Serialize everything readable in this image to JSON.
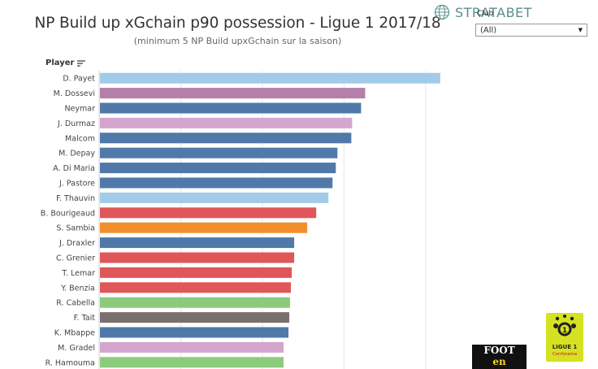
{
  "header": {
    "title": "NP Build up xGchain p90 possession - Ligue 1 2017/18",
    "subtitle": "(minimum 5 NP Build upxGchain sur la saison)"
  },
  "brand": {
    "name": "STRATABET"
  },
  "filter": {
    "label": "Club",
    "value": "(All)"
  },
  "table_header": {
    "player": "Player"
  },
  "sponsors": {
    "foot_line1": "FOOT",
    "foot_line2": "en",
    "ligue_line1": "LIGUE 1",
    "ligue_line2": "Conforama"
  },
  "colors": {
    "light_blue": "#a2cbea",
    "purple": "#b57fab",
    "blue": "#5079aa",
    "pink": "#d4a6cd",
    "red": "#e05759",
    "orange": "#f28e2b",
    "green": "#8ccb7c",
    "grey": "#79706e",
    "grid": "#e6e6e6"
  },
  "chart_data": {
    "type": "bar",
    "orientation": "horizontal",
    "categories": [
      "D. Payet",
      "M. Dossevi",
      "Neymar",
      "J. Durmaz",
      "Malcom",
      "M. Depay",
      "A. Di Maria",
      "J. Pastore",
      "F. Thauvin",
      "B. Bourigeaud",
      "S. Sambia",
      "J. Draxler",
      "C. Grenier",
      "T. Lemar",
      "Y. Benzia",
      "R. Cabella",
      "F. Tait",
      "K. Mbappe",
      "M. Gradel",
      "R. Hamouma"
    ],
    "values": [
      0.418,
      0.326,
      0.321,
      0.31,
      0.309,
      0.292,
      0.29,
      0.286,
      0.281,
      0.266,
      0.255,
      0.239,
      0.239,
      0.236,
      0.235,
      0.234,
      0.233,
      0.232,
      0.226,
      0.226
    ],
    "bar_colors": [
      "light_blue",
      "purple",
      "blue",
      "pink",
      "blue",
      "blue",
      "blue",
      "blue",
      "light_blue",
      "red",
      "orange",
      "blue",
      "red",
      "red",
      "red",
      "green",
      "grey",
      "blue",
      "pink",
      "green"
    ],
    "xlim": [
      0,
      0.45
    ],
    "gridlines": [
      0.1,
      0.2,
      0.3,
      0.4
    ],
    "grid": true,
    "title": "NP Build up xGchain p90 possession - Ligue 1 2017/18",
    "xlabel": "",
    "ylabel": "Player"
  }
}
